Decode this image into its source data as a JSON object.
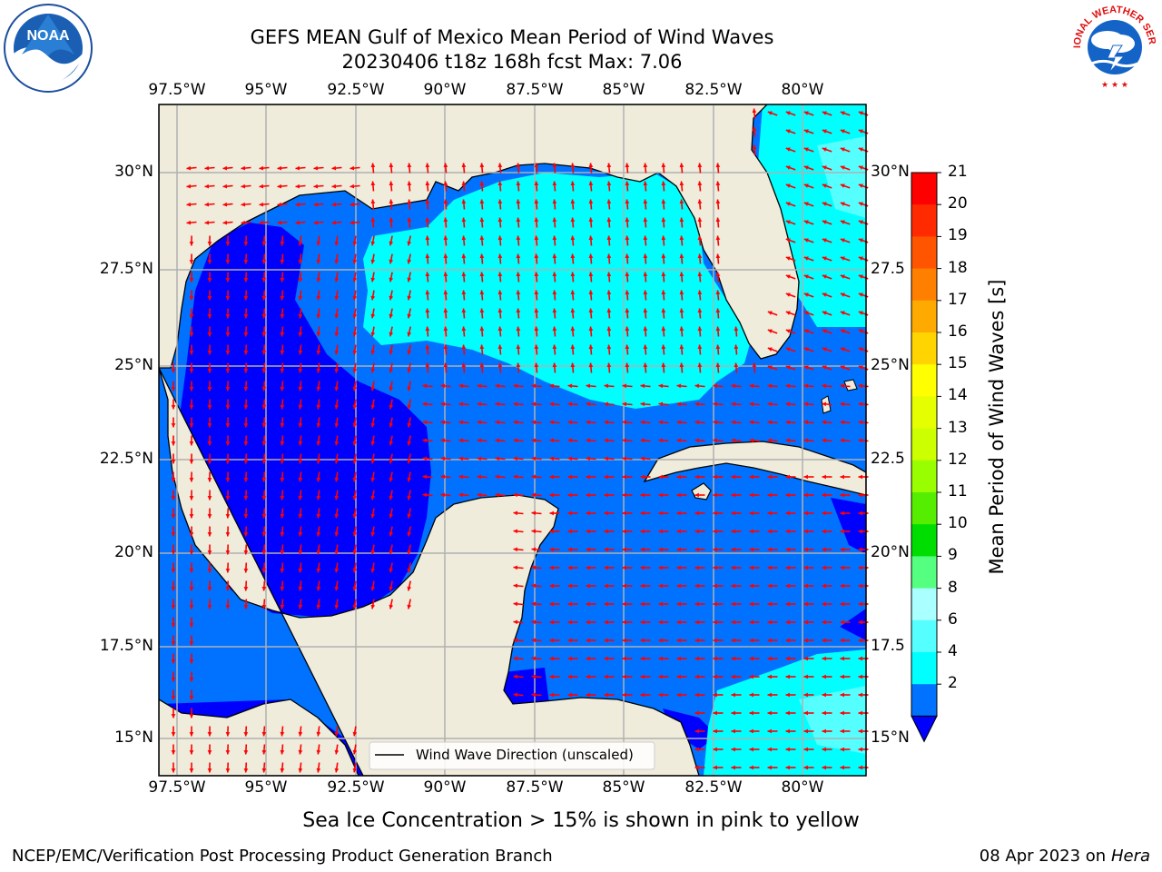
{
  "header": {
    "title_line1": "GEFS MEAN Gulf of Mexico Mean Period of Wind Waves",
    "title_line2": "20230406 t18z 168h fcst   Max: 7.06",
    "left_logo_text": "NOAA",
    "right_logo_text": "NATIONAL WEATHER SERVICE"
  },
  "map": {
    "lon_labels": [
      "97.5°W",
      "95°W",
      "92.5°W",
      "90°W",
      "87.5°W",
      "85°W",
      "82.5°W",
      "80°W"
    ],
    "lat_labels_left": [
      "30°N",
      "27.5°N",
      "25°N",
      "22.5°N",
      "20°N",
      "17.5°N",
      "15°N"
    ],
    "lat_labels_right": [
      "30°N",
      "27.5",
      "25°N",
      "22.5",
      "20°N",
      "17.5",
      "15°N"
    ],
    "legend_label": "Wind Wave Direction (unscaled)",
    "colors": {
      "land": "#efecdc",
      "period_2_4": "#0072ff",
      "period_below_2": "#0000ff",
      "period_4_6": "#00ffff",
      "arrow": "#ff0000",
      "grid": "#b0b0b0"
    }
  },
  "colorbar": {
    "title": "Mean Period of Wind Waves [s]",
    "ticks": [
      "21",
      "20",
      "19",
      "18",
      "17",
      "16",
      "15",
      "14",
      "13",
      "12",
      "11",
      "10",
      "9",
      "8",
      "6",
      "4",
      "2"
    ],
    "colors": [
      "#ff0000",
      "#ff2a00",
      "#ff5500",
      "#ff8000",
      "#ffaa00",
      "#ffd400",
      "#ffff00",
      "#e6ff00",
      "#ccff00",
      "#99ff00",
      "#55ee00",
      "#00dd00",
      "#55ff80",
      "#aaffff",
      "#55ffff",
      "#00ffff",
      "#0072ff"
    ],
    "under_color": "#0000ff"
  },
  "footer": {
    "note": "Sea Ice Concentration > 15% is shown in pink to yellow",
    "credit": "NCEP/EMC/Verification Post Processing Product Generation Branch",
    "date": "08 Apr 2023 on",
    "host": "Hera"
  }
}
